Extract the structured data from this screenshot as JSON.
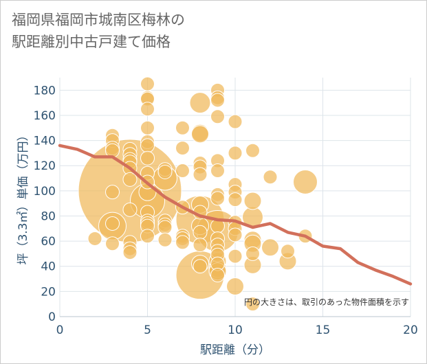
{
  "chart_data": {
    "type": "scatter",
    "title_lines": [
      "福岡県福岡市城南区梅林の",
      "駅距離別中古戸建て価格"
    ],
    "xlabel": "駅距離（分）",
    "ylabel": "坪（3.3㎡）単価（万円）",
    "note": "円の大きさは、取引のあった物件面積を示す",
    "xlim": [
      0,
      20
    ],
    "ylim": [
      0,
      190
    ],
    "xticks": [
      "0",
      "5",
      "10",
      "15",
      "20"
    ],
    "yticks": [
      "0",
      "20",
      "40",
      "60",
      "80",
      "100",
      "120",
      "140",
      "160",
      "180"
    ],
    "colors": {
      "bubble": "#f0b95a",
      "bubble_stroke": "#ffffff",
      "line": "#d2705b",
      "grid": "#dde4ea",
      "axis_text": "#2f5371",
      "title": "#666666"
    },
    "points": [
      {
        "x": 2,
        "y": 62,
        "s": 4
      },
      {
        "x": 3,
        "y": 144,
        "s": 4
      },
      {
        "x": 3,
        "y": 140,
        "s": 4
      },
      {
        "x": 3,
        "y": 134,
        "s": 4
      },
      {
        "x": 3,
        "y": 132,
        "s": 4
      },
      {
        "x": 3,
        "y": 99,
        "s": 4
      },
      {
        "x": 3,
        "y": 74,
        "s": 4
      },
      {
        "x": 3,
        "y": 72,
        "s": 8
      },
      {
        "x": 3,
        "y": 58,
        "s": 4
      },
      {
        "x": 4,
        "y": 133,
        "s": 4
      },
      {
        "x": 4,
        "y": 129,
        "s": 4
      },
      {
        "x": 4,
        "y": 125,
        "s": 4
      },
      {
        "x": 4,
        "y": 123,
        "s": 4
      },
      {
        "x": 4,
        "y": 118,
        "s": 4
      },
      {
        "x": 4,
        "y": 109,
        "s": 4
      },
      {
        "x": 4,
        "y": 100,
        "s": 30
      },
      {
        "x": 4,
        "y": 85,
        "s": 4
      },
      {
        "x": 4,
        "y": 59,
        "s": 4
      },
      {
        "x": 4,
        "y": 54,
        "s": 4
      },
      {
        "x": 4,
        "y": 51,
        "s": 4
      },
      {
        "x": 5,
        "y": 185,
        "s": 4
      },
      {
        "x": 5,
        "y": 174,
        "s": 4
      },
      {
        "x": 5,
        "y": 173,
        "s": 4
      },
      {
        "x": 5,
        "y": 165,
        "s": 4
      },
      {
        "x": 5,
        "y": 150,
        "s": 4
      },
      {
        "x": 5,
        "y": 139,
        "s": 4
      },
      {
        "x": 5,
        "y": 136,
        "s": 4
      },
      {
        "x": 5,
        "y": 126,
        "s": 4
      },
      {
        "x": 5,
        "y": 114,
        "s": 4
      },
      {
        "x": 5,
        "y": 107,
        "s": 4
      },
      {
        "x": 5,
        "y": 99,
        "s": 5
      },
      {
        "x": 5,
        "y": 92,
        "s": 10
      },
      {
        "x": 5,
        "y": 83,
        "s": 4
      },
      {
        "x": 5,
        "y": 76,
        "s": 4
      },
      {
        "x": 5,
        "y": 74,
        "s": 4
      },
      {
        "x": 5,
        "y": 72,
        "s": 4
      },
      {
        "x": 5,
        "y": 64,
        "s": 4
      },
      {
        "x": 6,
        "y": 117,
        "s": 4
      },
      {
        "x": 6,
        "y": 115,
        "s": 4
      },
      {
        "x": 6,
        "y": 110,
        "s": 7
      },
      {
        "x": 6,
        "y": 76,
        "s": 4
      },
      {
        "x": 6,
        "y": 73,
        "s": 4
      },
      {
        "x": 6,
        "y": 71,
        "s": 4
      },
      {
        "x": 6,
        "y": 61,
        "s": 4
      },
      {
        "x": 7,
        "y": 150,
        "s": 4
      },
      {
        "x": 7,
        "y": 134,
        "s": 4
      },
      {
        "x": 7,
        "y": 116,
        "s": 4
      },
      {
        "x": 7,
        "y": 87,
        "s": 4
      },
      {
        "x": 7,
        "y": 64,
        "s": 4
      },
      {
        "x": 7,
        "y": 62,
        "s": 4
      },
      {
        "x": 7,
        "y": 59,
        "s": 4
      },
      {
        "x": 8,
        "y": 170,
        "s": 6
      },
      {
        "x": 8,
        "y": 146,
        "s": 5
      },
      {
        "x": 8,
        "y": 145,
        "s": 5
      },
      {
        "x": 8,
        "y": 122,
        "s": 4
      },
      {
        "x": 8,
        "y": 119,
        "s": 4
      },
      {
        "x": 8,
        "y": 113,
        "s": 4
      },
      {
        "x": 8,
        "y": 89,
        "s": 5
      },
      {
        "x": 8,
        "y": 83,
        "s": 4
      },
      {
        "x": 8,
        "y": 77,
        "s": 14
      },
      {
        "x": 8,
        "y": 72,
        "s": 5
      },
      {
        "x": 8,
        "y": 67,
        "s": 4
      },
      {
        "x": 8,
        "y": 57,
        "s": 4
      },
      {
        "x": 8,
        "y": 42,
        "s": 5
      },
      {
        "x": 8,
        "y": 40,
        "s": 4
      },
      {
        "x": 8,
        "y": 33,
        "s": 14
      },
      {
        "x": 9,
        "y": 180,
        "s": 4
      },
      {
        "x": 9,
        "y": 174,
        "s": 4
      },
      {
        "x": 9,
        "y": 172,
        "s": 4
      },
      {
        "x": 9,
        "y": 159,
        "s": 4
      },
      {
        "x": 9,
        "y": 124,
        "s": 4
      },
      {
        "x": 9,
        "y": 116,
        "s": 4
      },
      {
        "x": 9,
        "y": 97,
        "s": 4
      },
      {
        "x": 9,
        "y": 94,
        "s": 4
      },
      {
        "x": 9,
        "y": 72,
        "s": 4
      },
      {
        "x": 9,
        "y": 68,
        "s": 12
      },
      {
        "x": 9,
        "y": 62,
        "s": 4
      },
      {
        "x": 9,
        "y": 57,
        "s": 4
      },
      {
        "x": 9,
        "y": 52,
        "s": 4
      },
      {
        "x": 9,
        "y": 49,
        "s": 4
      },
      {
        "x": 9,
        "y": 44,
        "s": 5
      },
      {
        "x": 9,
        "y": 42,
        "s": 4
      },
      {
        "x": 9,
        "y": 38,
        "s": 5
      },
      {
        "x": 9,
        "y": 36,
        "s": 5
      },
      {
        "x": 9,
        "y": 33,
        "s": 4
      },
      {
        "x": 10,
        "y": 155,
        "s": 4
      },
      {
        "x": 10,
        "y": 130,
        "s": 4
      },
      {
        "x": 10,
        "y": 105,
        "s": 4
      },
      {
        "x": 10,
        "y": 99,
        "s": 4
      },
      {
        "x": 10,
        "y": 93,
        "s": 4
      },
      {
        "x": 10,
        "y": 75,
        "s": 4
      },
      {
        "x": 10,
        "y": 70,
        "s": 4
      },
      {
        "x": 10,
        "y": 65,
        "s": 4
      },
      {
        "x": 10,
        "y": 48,
        "s": 4
      },
      {
        "x": 10,
        "y": 24,
        "s": 5
      },
      {
        "x": 11,
        "y": 132,
        "s": 4
      },
      {
        "x": 11,
        "y": 92,
        "s": 5
      },
      {
        "x": 11,
        "y": 79,
        "s": 6
      },
      {
        "x": 11,
        "y": 61,
        "s": 5
      },
      {
        "x": 11,
        "y": 58,
        "s": 5
      },
      {
        "x": 11,
        "y": 50,
        "s": 4
      },
      {
        "x": 11,
        "y": 41,
        "s": 5
      },
      {
        "x": 11,
        "y": 10,
        "s": 4
      },
      {
        "x": 12,
        "y": 111,
        "s": 4
      },
      {
        "x": 12,
        "y": 55,
        "s": 5
      },
      {
        "x": 13,
        "y": 52,
        "s": 4
      },
      {
        "x": 13,
        "y": 44,
        "s": 5
      },
      {
        "x": 14,
        "y": 107,
        "s": 7
      },
      {
        "x": 14,
        "y": 64,
        "s": 4
      }
    ],
    "series": [
      {
        "name": "average",
        "x": [
          0,
          1,
          2,
          3,
          4,
          5,
          6,
          7,
          8,
          9,
          10,
          11,
          12,
          13,
          14,
          15,
          16,
          17,
          18,
          19,
          20
        ],
        "values": [
          136,
          133,
          127,
          127,
          118,
          106,
          95,
          87,
          80,
          77,
          76,
          71,
          74,
          67,
          64,
          56,
          54,
          43,
          37,
          32,
          26
        ]
      }
    ]
  }
}
